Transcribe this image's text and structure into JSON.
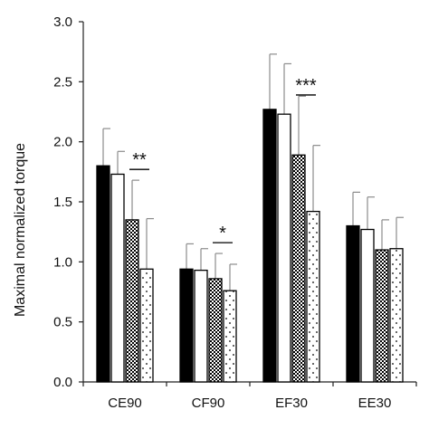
{
  "chart_data": {
    "type": "bar",
    "title": "",
    "xlabel": "",
    "ylabel": "Maximal normalized torque",
    "ylim": [
      0,
      3.0
    ],
    "yticks": [
      "0.0",
      "0.5",
      "1.0",
      "1.5",
      "2.0",
      "2.5",
      "3.0"
    ],
    "grid": false,
    "legend": "none",
    "categories": [
      "CE90",
      "CF90",
      "EF30",
      "EE30"
    ],
    "series": [
      {
        "fill": "solid-black",
        "color": "#000000",
        "values": [
          1.8,
          0.94,
          2.27,
          1.3
        ],
        "errors": [
          0.31,
          0.21,
          0.46,
          0.28
        ]
      },
      {
        "fill": "white",
        "color": "#ffffff",
        "values": [
          1.73,
          0.93,
          2.23,
          1.27
        ],
        "errors": [
          0.19,
          0.18,
          0.42,
          0.27
        ]
      },
      {
        "fill": "checkered",
        "color": "#000000",
        "values": [
          1.35,
          0.86,
          1.89,
          1.1
        ],
        "errors": [
          0.33,
          0.21,
          0.49,
          0.25
        ]
      },
      {
        "fill": "dotted",
        "color": "#ffffff",
        "values": [
          0.94,
          0.76,
          1.42,
          1.11
        ],
        "errors": [
          0.42,
          0.22,
          0.55,
          0.26
        ]
      }
    ],
    "significance": [
      {
        "category": "CE90",
        "label": "**",
        "from_series": 2,
        "to_series": 3,
        "y": 1.77
      },
      {
        "category": "CF90",
        "label": "*",
        "from_series": 2,
        "to_series": 3,
        "y": 1.16
      },
      {
        "category": "EF30",
        "label": "***",
        "from_series": 2,
        "to_series": 3,
        "y": 2.39
      }
    ]
  }
}
